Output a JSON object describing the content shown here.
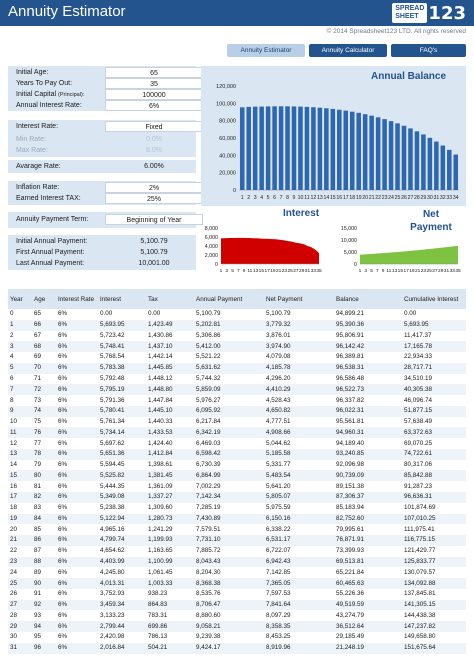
{
  "app": {
    "title": "Annuity Estimator",
    "logo_line1": "SPREAD",
    "logo_line2": "SHEET",
    "logo_num": "123",
    "copyright": "© 2014 Spreadsheet123 LTD. All rights reserved"
  },
  "tabs": [
    {
      "label": "Annuity Estimator",
      "active": true
    },
    {
      "label": "Annuity Calculator",
      "active": false
    },
    {
      "label": "FAQ's",
      "active": false
    }
  ],
  "inputs": {
    "initial_age": {
      "label": "Initial Age:",
      "value": "65"
    },
    "years_to_pay": {
      "label": "Years To Pay Out:",
      "value": "35"
    },
    "initial_capital": {
      "label": "Initial Capital",
      "note": "(Principal):",
      "value": "100000"
    },
    "annual_rate": {
      "label": "Annual Interest Rate:",
      "value": "6%"
    },
    "interest_rate": {
      "label": "Interest Rate:",
      "value": "Fixed"
    },
    "min_rate": {
      "label": "Min Rate:",
      "value": "0.0%"
    },
    "max_rate": {
      "label": "Max Rate:",
      "value": "8.0%"
    },
    "average_rate": {
      "label": "Avarage Rate:",
      "value": "6.00%"
    },
    "inflation_rate": {
      "label": "Inflation Rate:",
      "value": "2%"
    },
    "interest_tax": {
      "label": "Earned Interest TAX:",
      "value": "25%"
    },
    "payment_term": {
      "label": "Annuity Payment Term:",
      "value": "Beginning of Year"
    }
  },
  "results": {
    "initial_payment": {
      "label": "Initial Annual Payment:",
      "value": "5,100.79"
    },
    "first_payment": {
      "label": "First Annual Payment:",
      "value": "5,100.79"
    },
    "last_payment": {
      "label": "Last Annual Payment:",
      "value": "10,001.00"
    }
  },
  "colors": {
    "header": "#24548d",
    "panel": "#dbe6f3",
    "balance_bar": "#2d67b0",
    "interest_area": "#d10000",
    "net_area": "#7ec242"
  },
  "chart_data": [
    {
      "type": "bar",
      "title": "Annual Balance",
      "categories": [
        "1",
        "2",
        "3",
        "4",
        "5",
        "6",
        "7",
        "8",
        "9",
        "10",
        "11",
        "12",
        "13",
        "14",
        "15",
        "16",
        "17",
        "18",
        "19",
        "20",
        "21",
        "22",
        "23",
        "24",
        "25",
        "26",
        "27",
        "28",
        "29",
        "30",
        "31",
        "32",
        "33",
        "34"
      ],
      "values": [
        95390,
        95895,
        96195,
        96251,
        96426,
        96547,
        96592,
        96556,
        96432,
        96217,
        95904,
        95487,
        94959,
        94313,
        93541,
        92634,
        91585,
        90384,
        89023,
        87492,
        85780,
        83877,
        81770,
        79448,
        76898,
        74104,
        71052,
        67725,
        64105,
        60174,
        55910,
        51294,
        46300,
        40904
      ],
      "ylim": [
        0,
        120000
      ],
      "yticks": [
        "0",
        "20,000",
        "40,000",
        "60,000",
        "80,000",
        "100,000",
        "120,000"
      ]
    },
    {
      "type": "area",
      "title": "Interest",
      "x_ticks": [
        "1",
        "3",
        "5",
        "7",
        "9",
        "11",
        "13",
        "15",
        "17",
        "19",
        "21",
        "23",
        "25",
        "27",
        "29",
        "31",
        "33",
        "35"
      ],
      "values": [
        5694,
        5723,
        5753,
        5769,
        5775,
        5783,
        5792,
        5795,
        5790,
        5781,
        5773,
        5734,
        5711,
        5695,
        5654,
        5610,
        5594,
        5558,
        5531,
        5488,
        5423,
        5342,
        5252,
        5122,
        5030,
        4882,
        4735,
        4655,
        4491,
        4333,
        3986,
        3850,
        3459,
        3040,
        2424
      ],
      "ylim": [
        0,
        8000
      ],
      "yticks": [
        "0",
        "2,000",
        "4,000",
        "6,000",
        "8,000"
      ]
    },
    {
      "type": "area",
      "title": "Net Payment",
      "x_ticks": [
        "1",
        "3",
        "5",
        "7",
        "9",
        "11",
        "13",
        "15",
        "17",
        "19",
        "21",
        "23",
        "25",
        "27",
        "29",
        "31",
        "33",
        "35"
      ],
      "values": [
        3876,
        3954,
        4033,
        4113,
        4196,
        4280,
        4365,
        4452,
        4541,
        4632,
        4725,
        4819,
        4916,
        5014,
        5114,
        5217,
        5321,
        5427,
        5536,
        5647,
        5760,
        5875,
        5992,
        6112,
        6234,
        6359,
        6486,
        6616,
        6748,
        6883,
        7021,
        7161,
        7305,
        7451,
        7600
      ],
      "ylim": [
        0,
        15000
      ],
      "yticks": [
        "0",
        "5,000",
        "10,000",
        "15,000"
      ]
    }
  ],
  "table": {
    "headers": [
      "Year",
      "Age",
      "Interest Rate",
      "Interest",
      "Tax",
      "Annual Payment",
      "Net Payment",
      "Balance",
      "Cumulative Interest"
    ],
    "rows": [
      [
        "0",
        "65",
        "6%",
        "0.00",
        "0.00",
        "5,100.79",
        "5,100.79",
        "94,899.21",
        "0.00"
      ],
      [
        "1",
        "66",
        "6%",
        "5,693.95",
        "1,423.49",
        "5,202.81",
        "3,779.32",
        "95,390.36",
        "5,693.95"
      ],
      [
        "2",
        "67",
        "6%",
        "5,723.42",
        "1,430.86",
        "5,306.86",
        "3,876.01",
        "95,806.91",
        "11,417.37"
      ],
      [
        "3",
        "68",
        "6%",
        "5,748.41",
        "1,437.10",
        "5,412.00",
        "3,974.90",
        "96,142.42",
        "17,165.78"
      ],
      [
        "4",
        "69",
        "6%",
        "5,768.54",
        "1,442.14",
        "5,521.22",
        "4,079.08",
        "96,389.81",
        "22,934.33"
      ],
      [
        "5",
        "70",
        "6%",
        "5,783.38",
        "1,445.85",
        "5,631.62",
        "4,185.78",
        "96,538.31",
        "28,717.71"
      ],
      [
        "6",
        "71",
        "6%",
        "5,792.48",
        "1,448.12",
        "5,744.32",
        "4,296.20",
        "96,586.48",
        "34,510.19"
      ],
      [
        "7",
        "72",
        "6%",
        "5,795.19",
        "1,448.80",
        "5,859.09",
        "4,410.29",
        "96,522.73",
        "40,305.38"
      ],
      [
        "8",
        "73",
        "6%",
        "5,791.36",
        "1,447.84",
        "5,976.27",
        "4,528.43",
        "96,337.82",
        "46,096.74"
      ],
      [
        "9",
        "74",
        "6%",
        "5,780.41",
        "1,445.10",
        "6,095.92",
        "4,650.82",
        "96,022.31",
        "51,877.15"
      ],
      [
        "10",
        "75",
        "6%",
        "5,761.34",
        "1,440.33",
        "6,217.84",
        "4,777.51",
        "95,561.81",
        "57,638.49"
      ],
      [
        "11",
        "76",
        "6%",
        "5,734.14",
        "1,433.53",
        "6,342.19",
        "4,908.66",
        "94,960.31",
        "63,372.63"
      ],
      [
        "12",
        "77",
        "6%",
        "5,697.62",
        "1,424.40",
        "6,469.03",
        "5,044.62",
        "94,189.40",
        "69,070.25"
      ],
      [
        "13",
        "78",
        "6%",
        "5,651.36",
        "1,412.84",
        "6,598.42",
        "5,185.58",
        "93,240.85",
        "74,722.61"
      ],
      [
        "14",
        "79",
        "6%",
        "5,594.45",
        "1,398.61",
        "6,730.39",
        "5,331.77",
        "92,096.98",
        "80,317.06"
      ],
      [
        "15",
        "80",
        "6%",
        "5,525.82",
        "1,381.45",
        "6,864.99",
        "5,483.54",
        "90,739.09",
        "85,842.88"
      ],
      [
        "16",
        "81",
        "6%",
        "5,444.35",
        "1,361.09",
        "7,002.29",
        "5,641.20",
        "89,151.38",
        "91,287.23"
      ],
      [
        "17",
        "82",
        "6%",
        "5,349.08",
        "1,337.27",
        "7,142.34",
        "5,805.07",
        "87,306.37",
        "96,636.31"
      ],
      [
        "18",
        "83",
        "6%",
        "5,238.38",
        "1,309.60",
        "7,285.19",
        "5,975.59",
        "85,183.94",
        "101,874.69"
      ],
      [
        "19",
        "84",
        "6%",
        "5,122.94",
        "1,280.73",
        "7,430.89",
        "6,150.16",
        "82,752.60",
        "107,010.25"
      ],
      [
        "20",
        "85",
        "6%",
        "4,965.16",
        "1,241.29",
        "7,579.51",
        "6,338.22",
        "79,995.61",
        "111,975.41"
      ],
      [
        "21",
        "86",
        "6%",
        "4,799.74",
        "1,199.93",
        "7,731.10",
        "6,531.17",
        "76,871.91",
        "116,775.15"
      ],
      [
        "22",
        "87",
        "6%",
        "4,654.62",
        "1,163.65",
        "7,885.72",
        "6,722.07",
        "73,399.93",
        "121,429.77"
      ],
      [
        "23",
        "88",
        "6%",
        "4,403.99",
        "1,100.99",
        "8,043.43",
        "6,942.43",
        "69,513.81",
        "125,833.77"
      ],
      [
        "24",
        "89",
        "6%",
        "4,245.80",
        "1,061.45",
        "8,204.30",
        "7,142.85",
        "65,221.84",
        "130,079.57"
      ],
      [
        "25",
        "90",
        "6%",
        "4,013.31",
        "1,003.33",
        "8,368.38",
        "7,365.05",
        "60,465.63",
        "134,092.88"
      ],
      [
        "26",
        "91",
        "6%",
        "3,752.93",
        "938.23",
        "8,535.76",
        "7,597.53",
        "55,226.36",
        "137,845.81"
      ],
      [
        "27",
        "92",
        "6%",
        "3,459.34",
        "864.83",
        "8,706.47",
        "7,841.64",
        "49,519.59",
        "141,305.15"
      ],
      [
        "28",
        "93",
        "6%",
        "3,133.23",
        "783.31",
        "8,880.60",
        "8,097.29",
        "43,274.79",
        "144,438.38"
      ],
      [
        "29",
        "94",
        "6%",
        "2,799.44",
        "699.86",
        "9,058.21",
        "8,358.35",
        "36,512.64",
        "147,237.82"
      ],
      [
        "30",
        "95",
        "6%",
        "2,420.98",
        "786.13",
        "9,239.38",
        "8,453.25",
        "29,185.49",
        "149,658.80"
      ],
      [
        "31",
        "96",
        "6%",
        "2,016.84",
        "504.21",
        "9,424.17",
        "8,919.96",
        "21,248.19",
        "151,675.64"
      ]
    ]
  }
}
